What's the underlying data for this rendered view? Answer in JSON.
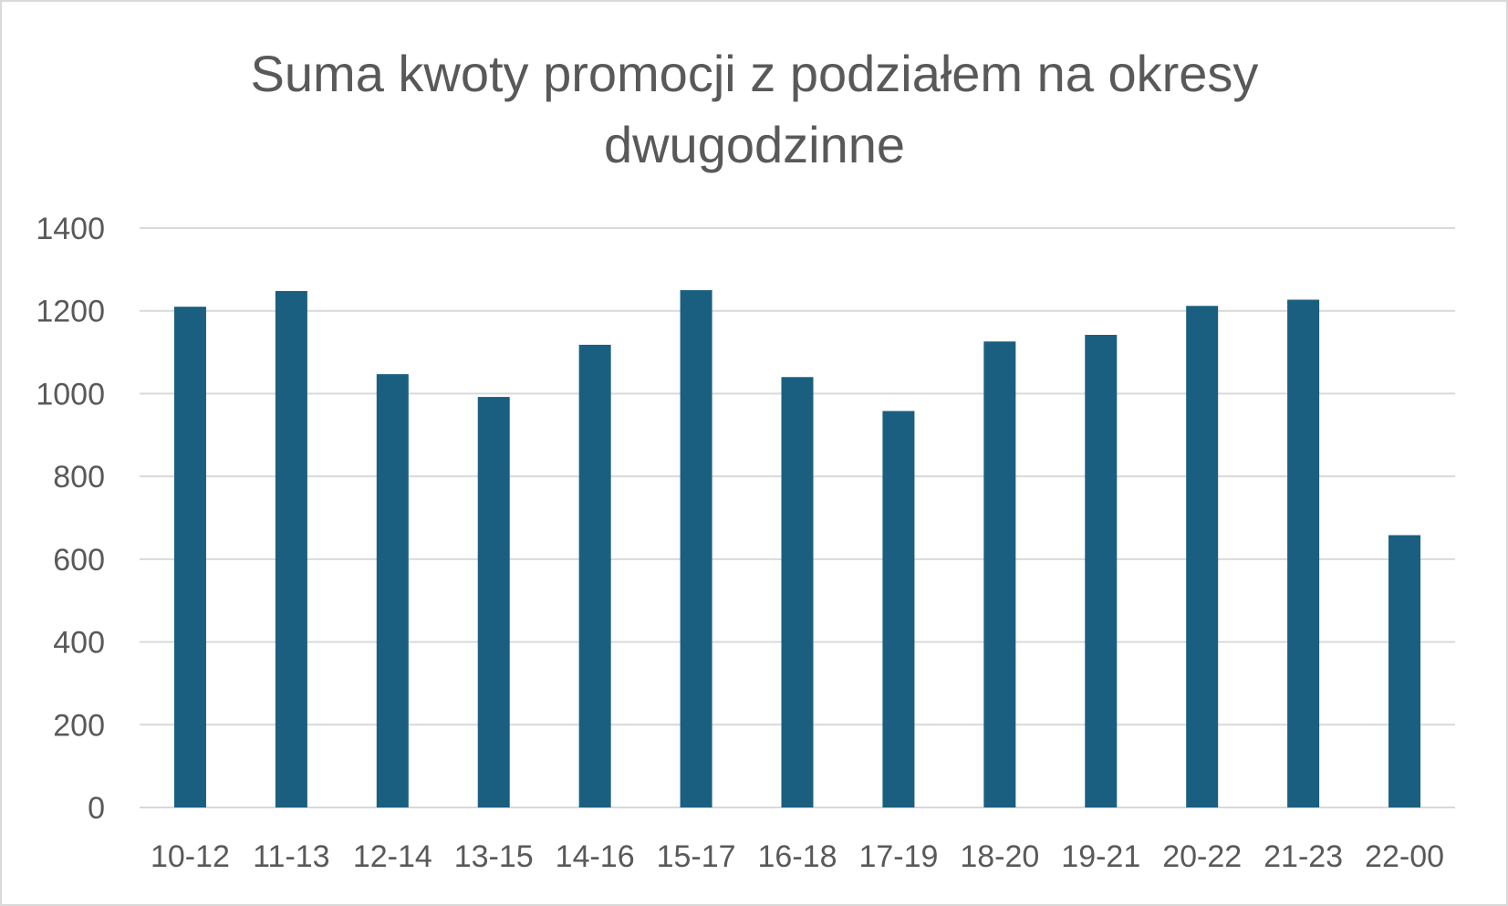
{
  "chart_data": {
    "type": "bar",
    "title": "Suma kwoty promocji z podziałem na okresy dwugodzinne",
    "xlabel": "",
    "ylabel": "",
    "categories": [
      "10-12",
      "11-13",
      "12-14",
      "13-15",
      "14-16",
      "15-17",
      "16-18",
      "17-19",
      "18-20",
      "19-21",
      "20-22",
      "21-23",
      "22-00"
    ],
    "values": [
      1210,
      1248,
      1047,
      992,
      1118,
      1250,
      1040,
      958,
      1126,
      1142,
      1212,
      1227,
      658
    ],
    "ylim": [
      0,
      1400
    ],
    "yticks": [
      0,
      200,
      400,
      600,
      800,
      1000,
      1200,
      1400
    ],
    "grid": true,
    "legend": "none",
    "colors": {
      "bar": "#1a5f80",
      "grid": "#d9d9d9",
      "text": "#595959"
    }
  }
}
